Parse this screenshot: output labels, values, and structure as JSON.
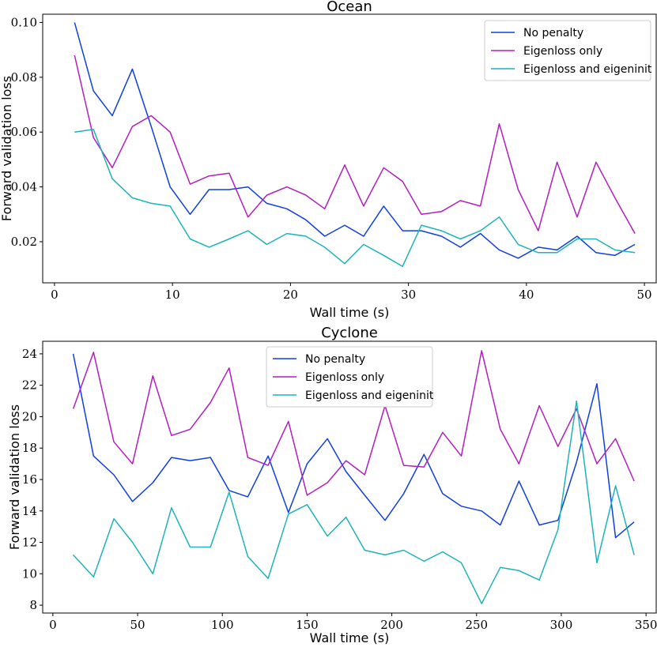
{
  "chart_data": [
    {
      "type": "line",
      "title": "Ocean",
      "xlabel": "Wall time (s)",
      "ylabel": "Forward validation loss",
      "xlim": [
        -1,
        51
      ],
      "ylim": [
        0.005,
        0.103
      ],
      "xticks": [
        0,
        10,
        20,
        30,
        40,
        50
      ],
      "xtick_labels": [
        "0",
        "10",
        "20",
        "30",
        "40",
        "50"
      ],
      "yticks": [
        0.02,
        0.04,
        0.06,
        0.08,
        0.1
      ],
      "ytick_labels": [
        "0.02",
        "0.04",
        "0.06",
        "0.08",
        "0.10"
      ],
      "legend_position": "top-right",
      "grid": false,
      "series": [
        {
          "name": "No penalty",
          "color": "#0f3fe0",
          "x": [
            1.7,
            3.3,
            4.9,
            6.6,
            8.2,
            9.8,
            11.5,
            13.1,
            14.8,
            16.4,
            18.0,
            19.7,
            21.3,
            22.9,
            24.6,
            26.2,
            27.9,
            29.5,
            31.1,
            32.8,
            34.4,
            36.1,
            37.7,
            39.3,
            41.0,
            42.6,
            44.3,
            45.9,
            47.5,
            49.2
          ],
          "y": [
            0.1,
            0.075,
            0.066,
            0.083,
            0.062,
            0.04,
            0.03,
            0.039,
            0.039,
            0.04,
            0.034,
            0.032,
            0.028,
            0.022,
            0.026,
            0.022,
            0.033,
            0.024,
            0.024,
            0.022,
            0.018,
            0.023,
            0.017,
            0.014,
            0.018,
            0.017,
            0.022,
            0.016,
            0.015,
            0.019
          ]
        },
        {
          "name": "Eigenloss only",
          "color": "#b21fbd",
          "x": [
            1.7,
            3.3,
            4.9,
            6.6,
            8.2,
            9.8,
            11.5,
            13.1,
            14.8,
            16.4,
            18.0,
            19.7,
            21.3,
            22.9,
            24.6,
            26.2,
            27.9,
            29.5,
            31.1,
            32.8,
            34.4,
            36.1,
            37.7,
            39.3,
            41.0,
            42.6,
            44.3,
            45.9,
            47.5,
            49.2
          ],
          "y": [
            0.088,
            0.058,
            0.047,
            0.062,
            0.066,
            0.06,
            0.041,
            0.044,
            0.045,
            0.029,
            0.037,
            0.04,
            0.037,
            0.032,
            0.048,
            0.033,
            0.047,
            0.042,
            0.03,
            0.031,
            0.035,
            0.033,
            0.063,
            0.039,
            0.024,
            0.049,
            0.029,
            0.049,
            0.036,
            0.023
          ]
        },
        {
          "name": "Eigenloss and eigeninit",
          "color": "#1eb3b8",
          "x": [
            1.7,
            3.3,
            4.9,
            6.6,
            8.2,
            9.8,
            11.5,
            13.1,
            14.8,
            16.4,
            18.0,
            19.7,
            21.3,
            22.9,
            24.6,
            26.2,
            27.9,
            29.5,
            31.1,
            32.8,
            34.4,
            36.1,
            37.7,
            39.3,
            41.0,
            42.6,
            44.3,
            45.9,
            47.5,
            49.2
          ],
          "y": [
            0.06,
            0.061,
            0.043,
            0.036,
            0.034,
            0.033,
            0.021,
            0.018,
            0.021,
            0.024,
            0.019,
            0.023,
            0.022,
            0.018,
            0.012,
            0.019,
            0.015,
            0.011,
            0.026,
            0.024,
            0.021,
            0.024,
            0.029,
            0.019,
            0.016,
            0.016,
            0.021,
            0.021,
            0.017,
            0.016
          ]
        }
      ]
    },
    {
      "type": "line",
      "title": "Cyclone",
      "xlabel": "Wall time (s)",
      "ylabel": "Forward validation loss",
      "xlim": [
        -6,
        356
      ],
      "ylim": [
        7.5,
        24.8
      ],
      "xticks": [
        0,
        50,
        100,
        150,
        200,
        250,
        300,
        350
      ],
      "xtick_labels": [
        "0",
        "50",
        "100",
        "150",
        "200",
        "250",
        "300",
        "350"
      ],
      "yticks": [
        8,
        10,
        12,
        14,
        16,
        18,
        20,
        22,
        24
      ],
      "ytick_labels": [
        "8",
        "10",
        "12",
        "14",
        "16",
        "18",
        "20",
        "22",
        "24"
      ],
      "legend_position": "top-center",
      "grid": false,
      "series": [
        {
          "name": "No penalty",
          "color": "#0f3fe0",
          "x": [
            12,
            24,
            36,
            47,
            59,
            70,
            81,
            93,
            104,
            115,
            127,
            139,
            150,
            162,
            173,
            184,
            196,
            207,
            219,
            230,
            241,
            253,
            264,
            275,
            287,
            298,
            309,
            321,
            332,
            343
          ],
          "y": [
            24.0,
            17.5,
            16.3,
            14.6,
            15.8,
            17.4,
            17.2,
            17.4,
            15.3,
            14.9,
            17.5,
            13.9,
            17.0,
            18.6,
            16.5,
            15.0,
            13.4,
            15.1,
            17.6,
            15.1,
            14.3,
            14.0,
            13.1,
            15.9,
            13.1,
            13.4,
            17.1,
            22.1,
            12.3,
            13.3
          ]
        },
        {
          "name": "Eigenloss only",
          "color": "#b21fbd",
          "x": [
            12,
            24,
            36,
            47,
            59,
            70,
            81,
            93,
            104,
            115,
            127,
            139,
            150,
            162,
            173,
            184,
            196,
            207,
            219,
            230,
            241,
            253,
            264,
            275,
            287,
            298,
            309,
            321,
            332,
            343
          ],
          "y": [
            20.5,
            24.1,
            18.4,
            17.0,
            22.6,
            18.8,
            19.2,
            20.9,
            23.1,
            17.4,
            16.9,
            19.7,
            15.0,
            15.8,
            17.2,
            16.3,
            20.7,
            16.9,
            16.8,
            19.0,
            17.5,
            24.2,
            19.2,
            17.0,
            20.7,
            18.1,
            20.5,
            17.0,
            18.6,
            15.9
          ]
        },
        {
          "name": "Eigenloss and eigeninit",
          "color": "#1eb3b8",
          "x": [
            12,
            24,
            36,
            47,
            59,
            70,
            81,
            93,
            104,
            115,
            127,
            139,
            150,
            162,
            173,
            184,
            196,
            207,
            219,
            230,
            241,
            253,
            264,
            275,
            287,
            298,
            309,
            321,
            332,
            343
          ],
          "y": [
            11.2,
            9.8,
            13.5,
            12.0,
            10.0,
            14.2,
            11.7,
            11.7,
            15.2,
            11.1,
            9.7,
            13.8,
            14.4,
            12.4,
            13.6,
            11.5,
            11.2,
            11.5,
            10.8,
            11.4,
            10.7,
            8.1,
            10.4,
            10.2,
            9.6,
            12.8,
            21.0,
            10.7,
            15.6,
            11.2
          ]
        }
      ]
    }
  ]
}
